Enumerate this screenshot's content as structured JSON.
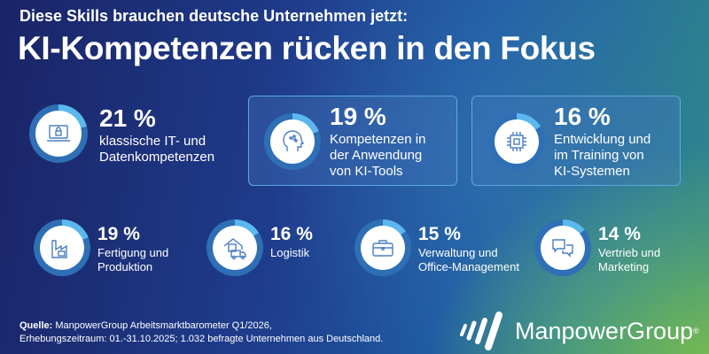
{
  "header": {
    "subtitle": "Diese Skills brauchen deutsche Unternehmen jetzt:",
    "title": "KI-Kompetenzen rücken in den Fokus"
  },
  "colors": {
    "ring_fill": "#5bb8ef",
    "ring_track": "#2e6fb5",
    "icon": "#4a7fc0"
  },
  "skills": [
    {
      "percent": "21 %",
      "value": 21,
      "label1": "klassische IT- und",
      "label2": "Datenkompetenzen",
      "label3": "",
      "icon": "laptop-lock-icon"
    },
    {
      "percent": "19 %",
      "value": 19,
      "label1": "Kompetenzen in",
      "label2": "der Anwendung",
      "label3": "von KI-Tools",
      "icon": "brain-head-icon"
    },
    {
      "percent": "16 %",
      "value": 16,
      "label1": "Entwicklung und",
      "label2": "im Training von",
      "label3": "KI-Systemen",
      "icon": "chip-icon"
    },
    {
      "percent": "19 %",
      "value": 19,
      "label1": "Fertigung und",
      "label2": "Produktion",
      "icon": "factory-icon"
    },
    {
      "percent": "16 %",
      "value": 16,
      "label1": "Logistik",
      "label2": "",
      "icon": "warehouse-truck-icon"
    },
    {
      "percent": "15 %",
      "value": 15,
      "label1": "Verwaltung und",
      "label2": "Office-Management",
      "icon": "briefcase-icon"
    },
    {
      "percent": "14 %",
      "value": 14,
      "label1": "Vertrieb und",
      "label2": "Marketing",
      "icon": "chat-bubbles-icon"
    }
  ],
  "footer": {
    "source_label": "Quelle:",
    "source_text": " ManpowerGroup Arbeitsmarktbarometer Q1/2026,",
    "line2": "Erhebungszeitraum: 01.-31.10.2025; 1.032 befragte Unternehmen aus Deutschland."
  },
  "logo": {
    "text": "ManpowerGroup",
    "mark": "®"
  }
}
